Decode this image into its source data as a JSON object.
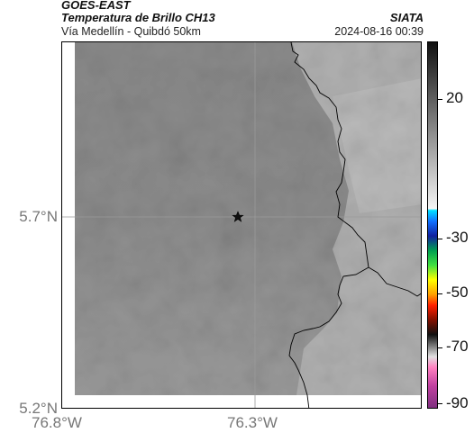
{
  "header": {
    "satellite": "GOES-EAST",
    "product": "Temperatura de Brillo CH13",
    "region": "Vía Medellín - Quibdó 50km",
    "source": "SIATA",
    "datetime": "2024-08-16 00:39"
  },
  "map": {
    "marker_icon": "star-icon",
    "y_ticks": [
      "5.7°N",
      "5.2°N"
    ],
    "x_ticks": [
      "76.8°W",
      "76.3°W"
    ]
  },
  "colorbar": {
    "labels": [
      "20",
      "-30",
      "-50",
      "-70",
      "-90"
    ]
  },
  "colors": {
    "warm_field": "#8c8c8c",
    "east_field": "#b0b0b0",
    "border_line": "#000000"
  }
}
